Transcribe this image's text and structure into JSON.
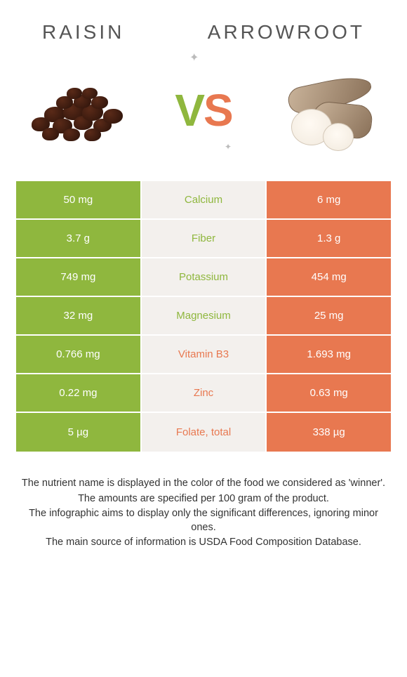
{
  "header": {
    "left_title": "Raisin",
    "right_title": "Arrowroot"
  },
  "vs": {
    "v": "V",
    "s": "S"
  },
  "colors": {
    "left": "#8fb73e",
    "right": "#e87850",
    "mid_bg": "#f3f0ed",
    "body_bg": "#ffffff",
    "title_text": "#555555",
    "foot_text": "#333333"
  },
  "table": {
    "rows": [
      {
        "left": "50 mg",
        "label": "Calcium",
        "right": "6 mg",
        "winner": "left"
      },
      {
        "left": "3.7 g",
        "label": "Fiber",
        "right": "1.3 g",
        "winner": "left"
      },
      {
        "left": "749 mg",
        "label": "Potassium",
        "right": "454 mg",
        "winner": "left"
      },
      {
        "left": "32 mg",
        "label": "Magnesium",
        "right": "25 mg",
        "winner": "left"
      },
      {
        "left": "0.766 mg",
        "label": "Vitamin B3",
        "right": "1.693 mg",
        "winner": "right"
      },
      {
        "left": "0.22 mg",
        "label": "Zinc",
        "right": "0.63 mg",
        "winner": "right"
      },
      {
        "left": "5 µg",
        "label": "Folate, total",
        "right": "338 µg",
        "winner": "right"
      }
    ]
  },
  "footnotes": {
    "l1": "The nutrient name is displayed in the color of the food we considered as 'winner'.",
    "l2": "The amounts are specified per 100 gram of the product.",
    "l3": "The infographic aims to display only the significant differences, ignoring minor ones.",
    "l4": "The main source of information is USDA Food Composition Database."
  }
}
